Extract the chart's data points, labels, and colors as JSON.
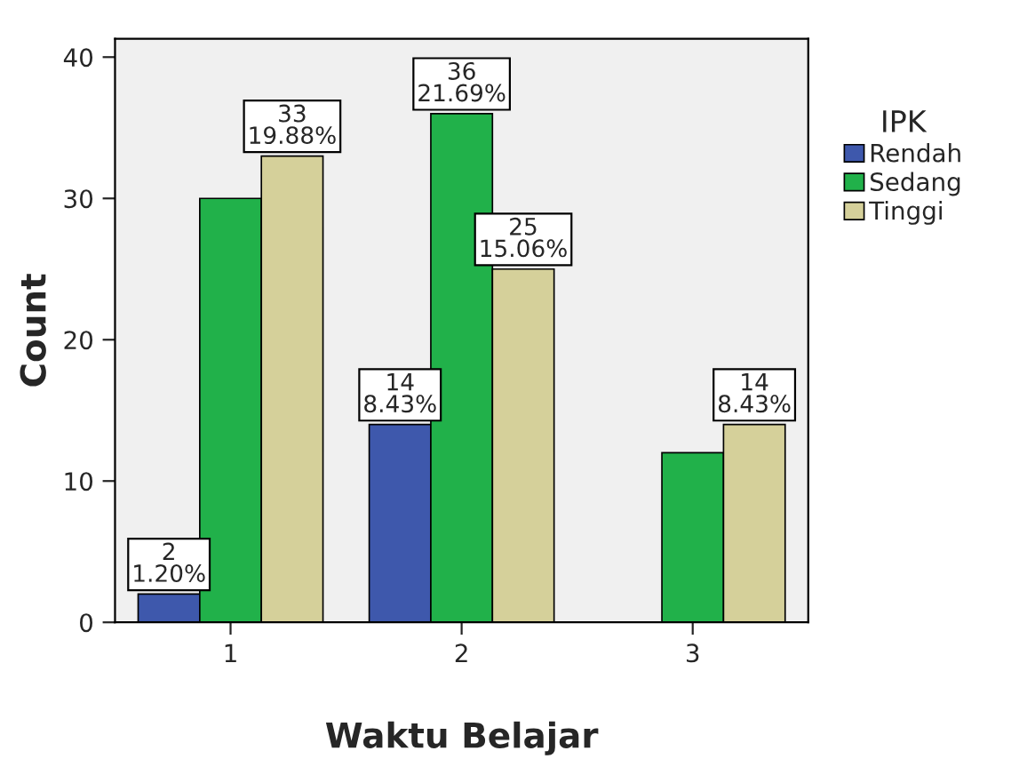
{
  "chart_data": {
    "type": "bar",
    "xlabel": "Waktu Belajar",
    "ylabel": "Count",
    "legend_title": "IPK",
    "legend": "right",
    "categories": [
      "1",
      "2",
      "3"
    ],
    "series": [
      {
        "name": "Rendah",
        "color": "#3e58ac",
        "values": [
          2,
          14,
          null
        ],
        "value_labels": [
          "2\n1.20%",
          "14\n8.43%",
          null
        ]
      },
      {
        "name": "Sedang",
        "color": "#21b14a",
        "values": [
          30,
          36,
          12
        ],
        "value_labels": [
          null,
          "36\n21.69%",
          null
        ]
      },
      {
        "name": "Tinggi",
        "color": "#d5d09a",
        "values": [
          33,
          25,
          14
        ],
        "value_labels": [
          "33\n19.88%",
          "25\n15.06%",
          "14\n8.43%"
        ]
      }
    ],
    "ylim": [
      0,
      41.3
    ],
    "yticks": [
      0,
      10,
      20,
      30,
      40
    ],
    "grid": false
  }
}
